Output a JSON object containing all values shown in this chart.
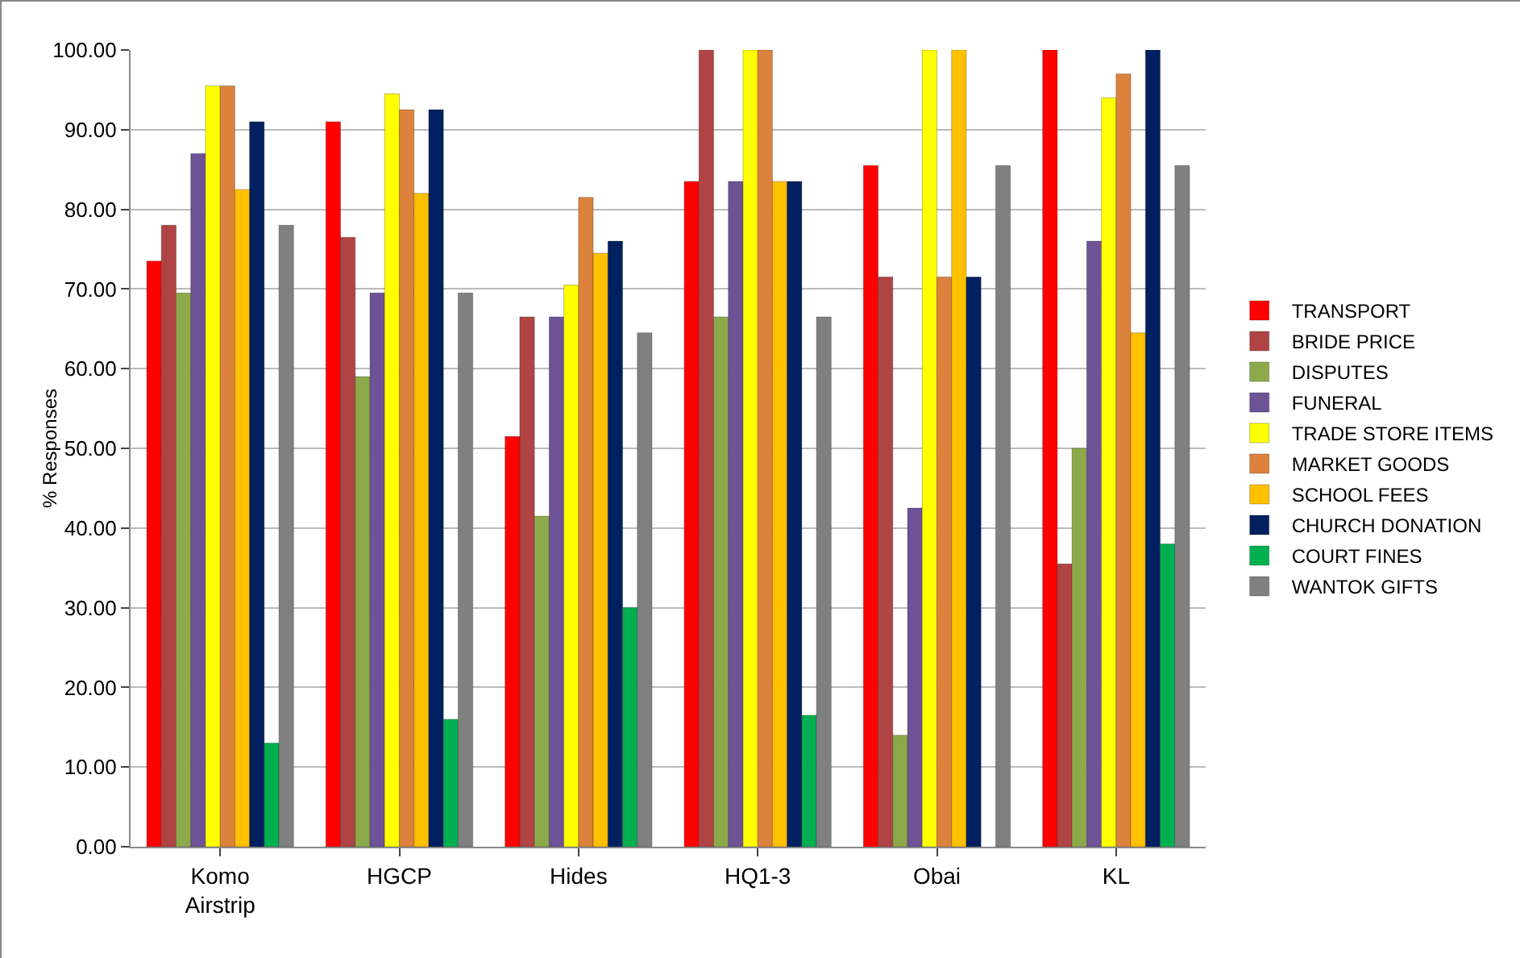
{
  "chart_data": {
    "type": "bar",
    "ylabel": "% Responses",
    "categories": [
      "Komo Airstrip",
      "HGCP",
      "Hides",
      "HQ1-3",
      "Obai",
      "KL"
    ],
    "series": [
      {
        "name": "TRANSPORT",
        "color": "#ff0000",
        "values": [
          73.5,
          91,
          51.5,
          83.5,
          85.5,
          100
        ]
      },
      {
        "name": "BRIDE PRICE",
        "color": "#b04444",
        "values": [
          78,
          76.5,
          66.5,
          100,
          71.5,
          35.5
        ]
      },
      {
        "name": "DISPUTES",
        "color": "#8daa4a",
        "values": [
          69.5,
          59,
          41.5,
          66.5,
          14,
          50
        ]
      },
      {
        "name": "FUNERAL",
        "color": "#6e5296",
        "values": [
          87,
          69.5,
          66.5,
          83.5,
          42.5,
          76
        ]
      },
      {
        "name": "TRADE STORE ITEMS",
        "color": "#ffff00",
        "values": [
          95.5,
          94.5,
          70.5,
          100,
          100,
          94
        ]
      },
      {
        "name": "MARKET GOODS",
        "color": "#dd823c",
        "values": [
          95.5,
          92.5,
          81.5,
          100,
          71.5,
          97
        ]
      },
      {
        "name": "SCHOOL FEES",
        "color": "#ffc000",
        "values": [
          82.5,
          82,
          74.5,
          83.5,
          100,
          64.5
        ]
      },
      {
        "name": "CHURCH DONATION",
        "color": "#002060",
        "values": [
          91,
          92.5,
          76,
          83.5,
          71.5,
          100
        ]
      },
      {
        "name": "COURT FINES",
        "color": "#00b050",
        "values": [
          13,
          16,
          30,
          16.5,
          null,
          38
        ]
      },
      {
        "name": "WANTOK GIFTS",
        "color": "#808080",
        "values": [
          78,
          69.5,
          64.5,
          66.5,
          85.5,
          85.5
        ]
      }
    ],
    "ylim": [
      0,
      100
    ],
    "yticks": [
      {
        "value": 0,
        "label": "0.00"
      },
      {
        "value": 10,
        "label": "10.00"
      },
      {
        "value": 20,
        "label": "20.00"
      },
      {
        "value": 30,
        "label": "30.00"
      },
      {
        "value": 40,
        "label": "40.00"
      },
      {
        "value": 50,
        "label": "50.00"
      },
      {
        "value": 60,
        "label": "60.00"
      },
      {
        "value": 70,
        "label": "70.00"
      },
      {
        "value": 80,
        "label": "80.00"
      },
      {
        "value": 90,
        "label": "90.00"
      },
      {
        "value": 100,
        "label": "100.00"
      }
    ],
    "grid": "y",
    "legend": "right"
  }
}
